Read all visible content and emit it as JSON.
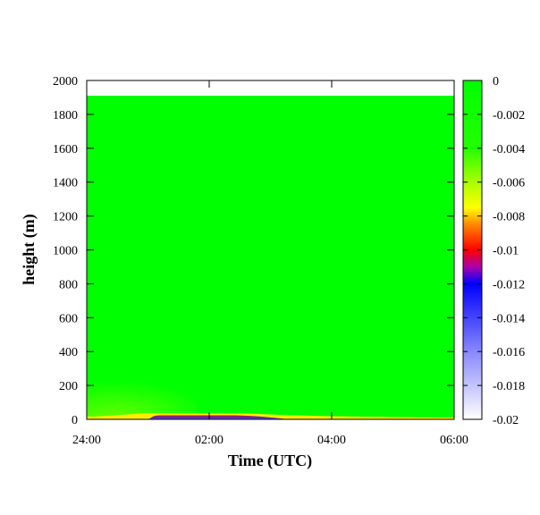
{
  "chart_data": {
    "type": "heatmap",
    "title": "",
    "xlabel": "Time (UTC)",
    "ylabel": "height (m)",
    "x_ticks": [
      "24:00",
      "02:00",
      "04:00",
      "06:00"
    ],
    "x_tick_hours": [
      0,
      2,
      4,
      6
    ],
    "xlim_hours": [
      0,
      6
    ],
    "y_ticks": [
      0,
      200,
      400,
      600,
      800,
      1000,
      1200,
      1400,
      1600,
      1800,
      2000
    ],
    "ylim": [
      0,
      2000
    ],
    "data_top_height": 1910,
    "colorbar": {
      "ticks": [
        "0",
        "-0.002",
        "-0.004",
        "-0.006",
        "-0.008",
        "-0.01",
        "-0.012",
        "-0.014",
        "-0.016",
        "-0.018",
        "-0.02"
      ],
      "range": [
        -0.02,
        0
      ],
      "stops": [
        {
          "value": 0,
          "color": "#00ff00"
        },
        {
          "value": -0.004,
          "color": "#22ff00"
        },
        {
          "value": -0.006,
          "color": "#aaff00"
        },
        {
          "value": -0.0075,
          "color": "#ffff00"
        },
        {
          "value": -0.0085,
          "color": "#ff8800"
        },
        {
          "value": -0.01,
          "color": "#ff0000"
        },
        {
          "value": -0.011,
          "color": "#aa00aa"
        },
        {
          "value": -0.012,
          "color": "#0000ff"
        },
        {
          "value": -0.016,
          "color": "#8888ff"
        },
        {
          "value": -0.02,
          "color": "#ffffff"
        }
      ]
    },
    "background_value": -0.0005,
    "features": [
      {
        "type": "low_level_band",
        "t_start_hours": 1.0,
        "t_end_hours": 3.3,
        "height_top": 30,
        "core_value": -0.013,
        "edge_value": -0.009
      },
      {
        "type": "surface_haze",
        "t_start_hours": 0.0,
        "t_end_hours": 1.8,
        "height_top": 260,
        "value": -0.003
      }
    ]
  }
}
